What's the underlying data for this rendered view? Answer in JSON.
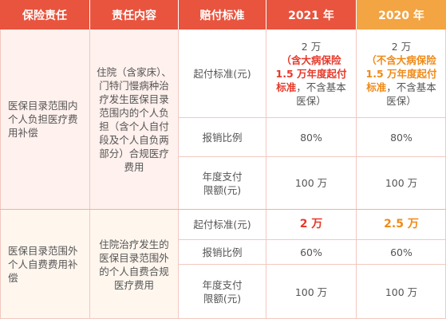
{
  "header": {
    "col1": "保险责任",
    "col2": "责任内容",
    "col3": "赔付标准",
    "col4": "2021 年",
    "col5": "2020 年"
  },
  "section1": {
    "liability": "医保目录范围内个人负担医疗费用补偿",
    "content": "住院（含家床）、门特门慢病种治疗发生医保目录范围内的个人负担（含个人自付段及个人自负两部分）合规医疗费用",
    "rows": [
      {
        "standard": "起付标准(元)",
        "y2021_amount": "2 万",
        "y2021_highlight": "（含大病保险 1.5 万年度起付标准",
        "y2021_tail": "，不含基本医保）",
        "y2020_amount": "2 万",
        "y2020_highlight": "（不含大病保险 1.5 万年度起付标准",
        "y2020_tail": "，不含基本医保）"
      },
      {
        "standard": "报销比例",
        "y2021": "80%",
        "y2020": "80%"
      },
      {
        "standard": "年度支付限额(元)",
        "y2021": "100 万",
        "y2020": "100 万"
      }
    ]
  },
  "section2": {
    "liability": "医保目录范围外个人自费费用补偿",
    "content": "住院治疗发生的医保目录范围外的个人自费合规医疗费用",
    "rows": [
      {
        "standard": "起付标准(元)",
        "y2021": "2 万",
        "y2020": "2.5 万"
      },
      {
        "standard": "报销比例",
        "y2021": "60%",
        "y2020": "60%"
      },
      {
        "standard": "年度支付限额(元)",
        "y2021": "100 万",
        "y2020": "100 万"
      }
    ]
  },
  "colors": {
    "header_red": "#e8543e",
    "header_orange": "#f3a443",
    "highlight_red": "#e8382a",
    "highlight_orange": "#f08a17"
  }
}
